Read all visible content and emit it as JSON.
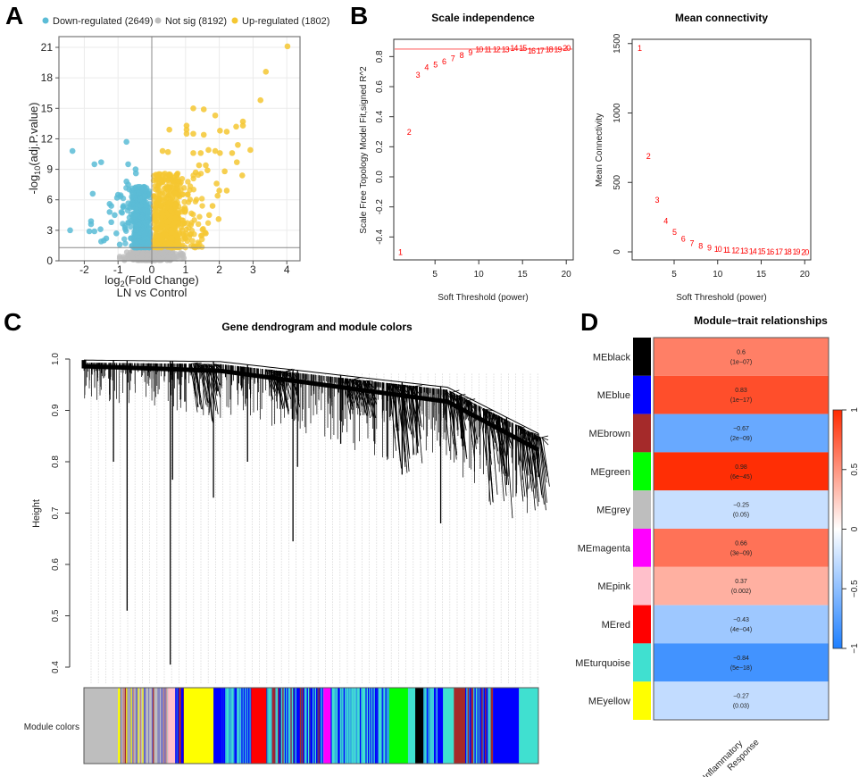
{
  "panel_labels": {
    "a": "A",
    "b": "B",
    "c": "C",
    "d": "D"
  },
  "chart_data": [
    {
      "panel": "A",
      "type": "scatter",
      "legend": [
        {
          "label": "Down-regulated (2649)",
          "color": "#5bbcd6"
        },
        {
          "label": "Not sig (8192)",
          "color": "#bdbdbd"
        },
        {
          "label": "Up-regulated (1802)",
          "color": "#f5c731"
        }
      ],
      "counts": {
        "down": 2649,
        "not_sig": 8192,
        "up": 1802
      },
      "xlabel": {
        "pre": "log",
        "sub": "2",
        "post": "(Fold Change)"
      },
      "xlabel2": "LN vs Control",
      "ylabel": {
        "pre": "-log",
        "sub": "10",
        "post": "(adj.P.value)"
      },
      "xlim": [
        -2.7,
        4.3
      ],
      "ylim": [
        0,
        22
      ],
      "xticks": [
        -2,
        -1,
        0,
        1,
        2,
        3,
        4
      ],
      "yticks": [
        0,
        3,
        6,
        9,
        12,
        15,
        18,
        21
      ],
      "threshold_y": 1.3,
      "vline_x": 0,
      "grid": true,
      "up_points": [
        [
          4.02,
          21.1
        ],
        [
          3.38,
          18.6
        ],
        [
          3.22,
          15.8
        ],
        [
          1.23,
          15.0
        ],
        [
          1.54,
          14.9
        ],
        [
          1.88,
          14.3
        ],
        [
          2.7,
          13.7
        ],
        [
          2.7,
          13.3
        ],
        [
          2.5,
          13.2
        ],
        [
          1.03,
          13.3
        ],
        [
          1.03,
          12.9
        ],
        [
          0.52,
          12.9
        ],
        [
          2.02,
          12.8
        ],
        [
          2.22,
          12.7
        ],
        [
          1.54,
          12.4
        ],
        [
          1.03,
          12.5
        ],
        [
          1.23,
          12.5
        ],
        [
          2.55,
          11.4
        ],
        [
          2.92,
          10.9
        ],
        [
          1.68,
          10.9
        ],
        [
          2.38,
          10.6
        ],
        [
          1.88,
          10.8
        ],
        [
          2.02,
          10.6
        ],
        [
          1.23,
          10.6
        ],
        [
          0.32,
          10.8
        ],
        [
          0.48,
          10.7
        ],
        [
          1.45,
          10.6
        ],
        [
          2.52,
          9.7
        ],
        [
          2.68,
          8.4
        ],
        [
          2.16,
          8.8
        ],
        [
          1.92,
          7.6
        ],
        [
          2.0,
          6.9
        ],
        [
          2.22,
          6.9
        ],
        [
          1.95,
          6.4
        ],
        [
          1.98,
          4.1
        ],
        [
          1.6,
          2.7
        ],
        [
          1.8,
          5.4
        ],
        [
          1.7,
          4.5
        ],
        [
          1.4,
          9.4
        ],
        [
          1.6,
          9.4
        ],
        [
          1.3,
          8.7
        ],
        [
          1.65,
          8.9
        ]
      ],
      "down_points": [
        [
          -2.35,
          10.8
        ],
        [
          -1.7,
          9.5
        ],
        [
          -1.5,
          9.7
        ],
        [
          -0.75,
          11.7
        ],
        [
          -0.7,
          9.5
        ],
        [
          -1.75,
          6.6
        ],
        [
          -2.42,
          3.0
        ],
        [
          -1.8,
          3.6
        ],
        [
          -1.8,
          3.9
        ],
        [
          -1.85,
          2.9
        ],
        [
          -1.7,
          2.9
        ],
        [
          -1.52,
          3.1
        ],
        [
          -1.5,
          1.9
        ],
        [
          -1.42,
          2.0
        ],
        [
          -1.35,
          2.2
        ],
        [
          -1.25,
          5.6
        ],
        [
          -1.2,
          5.4
        ],
        [
          -1.25,
          4.8
        ],
        [
          -1.2,
          3.8
        ],
        [
          -1.1,
          4.5
        ],
        [
          -1.0,
          6.5
        ],
        [
          -1.03,
          6.2
        ],
        [
          -0.85,
          5.3
        ],
        [
          -0.9,
          4.8
        ],
        [
          -0.75,
          7.8
        ],
        [
          -0.7,
          7.5
        ],
        [
          -0.48,
          9.0
        ],
        [
          -0.47,
          8.6
        ],
        [
          -1.05,
          2.7
        ],
        [
          -0.95,
          1.6
        ]
      ]
    },
    {
      "panel": "B-left",
      "type": "scatter",
      "title": "Scale independence",
      "xlabel": "Soft Threshold (power)",
      "ylabel": "Scale Free Topology Model Fit,signed R^2",
      "xticks": [
        5,
        10,
        15,
        20
      ],
      "yticks": [
        -0.4,
        -0.2,
        0.0,
        0.2,
        0.4,
        0.6,
        0.8
      ],
      "ylim": [
        -0.55,
        0.9
      ],
      "threshold_line": 0.85,
      "marker_color": "#ff0000",
      "points": [
        {
          "power": 1,
          "r2": -0.5
        },
        {
          "power": 2,
          "r2": 0.3
        },
        {
          "power": 3,
          "r2": 0.68
        },
        {
          "power": 4,
          "r2": 0.73
        },
        {
          "power": 5,
          "r2": 0.75
        },
        {
          "power": 6,
          "r2": 0.77
        },
        {
          "power": 7,
          "r2": 0.79
        },
        {
          "power": 8,
          "r2": 0.81
        },
        {
          "power": 9,
          "r2": 0.83
        },
        {
          "power": 10,
          "r2": 0.85
        },
        {
          "power": 11,
          "r2": 0.85
        },
        {
          "power": 12,
          "r2": 0.85
        },
        {
          "power": 13,
          "r2": 0.85
        },
        {
          "power": 14,
          "r2": 0.86
        },
        {
          "power": 15,
          "r2": 0.86
        },
        {
          "power": 16,
          "r2": 0.84
        },
        {
          "power": 17,
          "r2": 0.84
        },
        {
          "power": 18,
          "r2": 0.85
        },
        {
          "power": 19,
          "r2": 0.85
        },
        {
          "power": 20,
          "r2": 0.86
        }
      ]
    },
    {
      "panel": "B-right",
      "type": "scatter",
      "title": "Mean connectivity",
      "xlabel": "Soft Threshold (power)",
      "ylabel": "Mean Connectivity",
      "xticks": [
        5,
        10,
        15,
        20
      ],
      "yticks": [
        0,
        500,
        1000,
        1500
      ],
      "marker_color": "#ff0000",
      "points": [
        {
          "power": 1,
          "k": 1470
        },
        {
          "power": 2,
          "k": 690
        },
        {
          "power": 3,
          "k": 375
        },
        {
          "power": 4,
          "k": 225
        },
        {
          "power": 5,
          "k": 145
        },
        {
          "power": 6,
          "k": 95
        },
        {
          "power": 7,
          "k": 65
        },
        {
          "power": 8,
          "k": 45
        },
        {
          "power": 9,
          "k": 32
        },
        {
          "power": 10,
          "k": 22
        },
        {
          "power": 11,
          "k": 16
        },
        {
          "power": 12,
          "k": 12
        },
        {
          "power": 13,
          "k": 9
        },
        {
          "power": 14,
          "k": 7
        },
        {
          "power": 15,
          "k": 5
        },
        {
          "power": 16,
          "k": 4
        },
        {
          "power": 17,
          "k": 3
        },
        {
          "power": 18,
          "k": 2
        },
        {
          "power": 19,
          "k": 2
        },
        {
          "power": 20,
          "k": 1
        }
      ]
    },
    {
      "panel": "C",
      "type": "dendrogram",
      "title": "Gene dendrogram and module colors",
      "ylabel": "Height",
      "ylim": [
        0.4,
        1.0
      ],
      "yticks": [
        0.4,
        0.5,
        0.6,
        0.7,
        0.8,
        0.9,
        1.0
      ],
      "color_bar_label": "Module colors",
      "module_color_bar": [
        {
          "color": "#bebebe",
          "share": 0.075
        },
        {
          "color": "mixed-grey-brown",
          "share": 0.11
        },
        {
          "color": "#ffc0cb",
          "share": 0.016
        },
        {
          "color": "mixed-blue",
          "share": 0.019
        },
        {
          "color": "#ffff00",
          "share": 0.065
        },
        {
          "color": "#0000ff",
          "share": 0.018
        },
        {
          "color": "mixed-turquoise",
          "share": 0.065
        },
        {
          "color": "#ff0000",
          "share": 0.033
        },
        {
          "color": "mixed-blue-brown",
          "share": 0.126
        },
        {
          "color": "#ff00ff",
          "share": 0.016
        },
        {
          "color": "mixed-turquoise",
          "share": 0.129
        },
        {
          "color": "#00ff00",
          "share": 0.041
        },
        {
          "color": "#40e0d0",
          "share": 0.016
        },
        {
          "color": "#000000",
          "share": 0.018
        },
        {
          "color": "mixed-turquoise",
          "share": 0.031
        },
        {
          "color": "#0000ff",
          "share": 0.012
        },
        {
          "color": "#40e0d0",
          "share": 0.024
        },
        {
          "color": "#a52a2a",
          "share": 0.025
        },
        {
          "color": "mixed-blue",
          "share": 0.061
        },
        {
          "color": "#0000ff",
          "share": 0.057
        },
        {
          "color": "#40e0d0",
          "share": 0.042
        }
      ]
    },
    {
      "panel": "D",
      "type": "heatmap",
      "title": "Module−trait relationships",
      "column": "Inflammatory Response",
      "column_lines": [
        "Inflammatory",
        "Response"
      ],
      "color_scale": {
        "min": -1,
        "max": 1,
        "low": "#1e7fff",
        "mid": "#ffffff",
        "high": "#ff2a00",
        "ticks": [
          "1",
          "0.5",
          "0",
          "−0.5",
          "−1"
        ]
      },
      "rows": [
        {
          "module": "MEblack",
          "color": "#000000",
          "cor": 0.6,
          "cor_label": "0.6",
          "p": "(1e−07)"
        },
        {
          "module": "MEblue",
          "color": "#0000ff",
          "cor": 0.83,
          "cor_label": "0.83",
          "p": "(1e−17)"
        },
        {
          "module": "MEbrown",
          "color": "#a52a2a",
          "cor": -0.67,
          "cor_label": "−0.67",
          "p": "(2e−09)"
        },
        {
          "module": "MEgreen",
          "color": "#00ff00",
          "cor": 0.98,
          "cor_label": "0.98",
          "p": "(6e−45)"
        },
        {
          "module": "MEgrey",
          "color": "#bebebe",
          "cor": -0.25,
          "cor_label": "−0.25",
          "p": "(0.05)"
        },
        {
          "module": "MEmagenta",
          "color": "#ff00ff",
          "cor": 0.66,
          "cor_label": "0.66",
          "p": "(3e−09)"
        },
        {
          "module": "MEpink",
          "color": "#ffc0cb",
          "cor": 0.37,
          "cor_label": "0.37",
          "p": "(0.002)"
        },
        {
          "module": "MEred",
          "color": "#ff0000",
          "cor": -0.43,
          "cor_label": "−0.43",
          "p": "(4e−04)"
        },
        {
          "module": "MEturquoise",
          "color": "#40e0d0",
          "cor": -0.84,
          "cor_label": "−0.84",
          "p": "(5e−18)"
        },
        {
          "module": "MEyellow",
          "color": "#ffff00",
          "cor": -0.27,
          "cor_label": "−0.27",
          "p": "(0.03)"
        }
      ]
    }
  ]
}
